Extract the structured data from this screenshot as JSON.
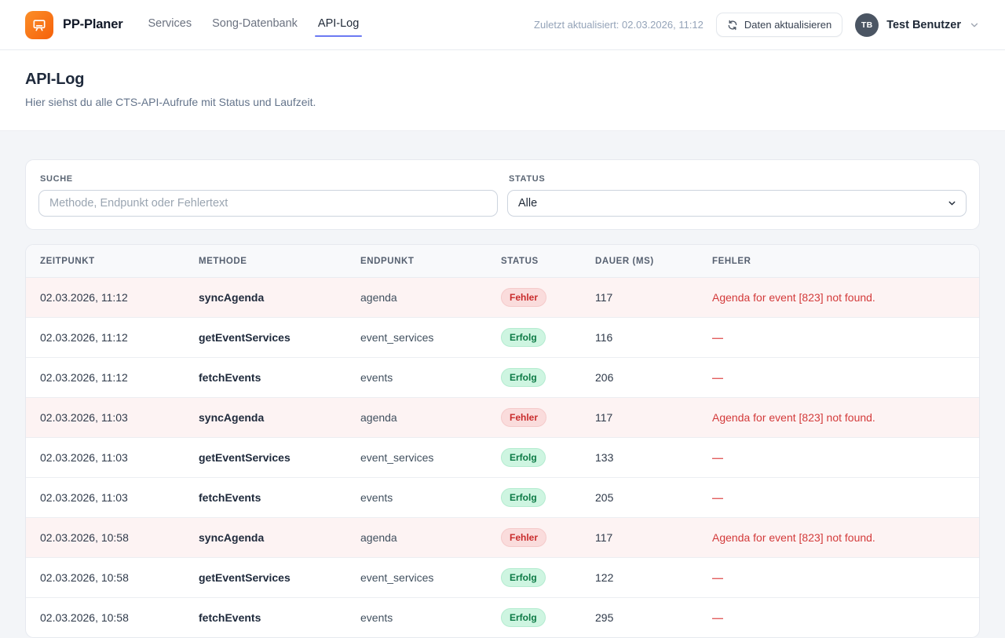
{
  "header": {
    "brand": "PP-Planer",
    "nav": [
      {
        "label": "Services"
      },
      {
        "label": "Song-Datenbank"
      },
      {
        "label": "API-Log"
      }
    ],
    "last_updated": "Zuletzt aktualisiert: 02.03.2026, 11:12",
    "refresh_label": "Daten aktualisieren",
    "user": {
      "initials": "TB",
      "name": "Test Benutzer"
    }
  },
  "page": {
    "title": "API-Log",
    "subtitle": "Hier siehst du alle CTS-API-Aufrufe mit Status und Laufzeit."
  },
  "filters": {
    "search": {
      "label": "Suche",
      "placeholder": "Methode, Endpunkt oder Fehlertext",
      "value": ""
    },
    "status": {
      "label": "Status",
      "selected": "Alle"
    }
  },
  "table": {
    "columns": [
      "Zeitpunkt",
      "Methode",
      "Endpunkt",
      "Status",
      "Dauer (ms)",
      "Fehler"
    ],
    "empty_placeholder": "—",
    "status_error_label": "Fehler",
    "status_success_label": "Erfolg",
    "rows": [
      {
        "zeitpunkt": "02.03.2026, 11:12",
        "methode": "syncAgenda",
        "endpunkt": "agenda",
        "status": "Fehler",
        "dauer": "117",
        "fehler": "Agenda for event [823] not found."
      },
      {
        "zeitpunkt": "02.03.2026, 11:12",
        "methode": "getEventServices",
        "endpunkt": "event_services",
        "status": "Erfolg",
        "dauer": "116",
        "fehler": ""
      },
      {
        "zeitpunkt": "02.03.2026, 11:12",
        "methode": "fetchEvents",
        "endpunkt": "events",
        "status": "Erfolg",
        "dauer": "206",
        "fehler": ""
      },
      {
        "zeitpunkt": "02.03.2026, 11:03",
        "methode": "syncAgenda",
        "endpunkt": "agenda",
        "status": "Fehler",
        "dauer": "117",
        "fehler": "Agenda for event [823] not found."
      },
      {
        "zeitpunkt": "02.03.2026, 11:03",
        "methode": "getEventServices",
        "endpunkt": "event_services",
        "status": "Erfolg",
        "dauer": "133",
        "fehler": ""
      },
      {
        "zeitpunkt": "02.03.2026, 11:03",
        "methode": "fetchEvents",
        "endpunkt": "events",
        "status": "Erfolg",
        "dauer": "205",
        "fehler": ""
      },
      {
        "zeitpunkt": "02.03.2026, 10:58",
        "methode": "syncAgenda",
        "endpunkt": "agenda",
        "status": "Fehler",
        "dauer": "117",
        "fehler": "Agenda for event [823] not found."
      },
      {
        "zeitpunkt": "02.03.2026, 10:58",
        "methode": "getEventServices",
        "endpunkt": "event_services",
        "status": "Erfolg",
        "dauer": "122",
        "fehler": ""
      },
      {
        "zeitpunkt": "02.03.2026, 10:58",
        "methode": "fetchEvents",
        "endpunkt": "events",
        "status": "Erfolg",
        "dauer": "295",
        "fehler": ""
      }
    ]
  },
  "colors": {
    "brand-orange": "#f6610a",
    "brand-orange-light": "#fb8e28",
    "accent-indigo": "#6b79f2",
    "avatar-bg": "#4b5563",
    "page-bg": "#f3f5f8",
    "error-row-bg": "#fdf3f3",
    "error-text": "#d33a3a",
    "dash-red": "#e25f5f",
    "badge-error-bg": "#fadcdc",
    "badge-error-text": "#c92c2c",
    "badge-success-bg": "#cef5e1",
    "badge-success-text": "#0c7a45"
  }
}
